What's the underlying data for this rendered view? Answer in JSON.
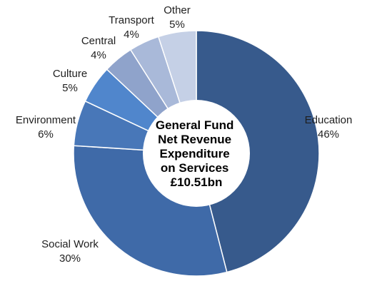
{
  "chart_data": {
    "type": "pie",
    "variant": "donut",
    "center_label": [
      "General Fund",
      "Net Revenue",
      "Expenditure",
      "on Services",
      "£10.51bn"
    ],
    "slices": [
      {
        "label": "Education",
        "value": 46,
        "value_text": "46%",
        "color": "#375a8c"
      },
      {
        "label": "Social Work",
        "value": 30,
        "value_text": "30%",
        "color": "#3f6aa8"
      },
      {
        "label": "Environment",
        "value": 6,
        "value_text": "6%",
        "color": "#4877b8"
      },
      {
        "label": "Culture",
        "value": 5,
        "value_text": "5%",
        "color": "#5086cc"
      },
      {
        "label": "Central",
        "value": 4,
        "value_text": "4%",
        "color": "#8fa3cb"
      },
      {
        "label": "Transport",
        "value": 4,
        "value_text": "4%",
        "color": "#a9b9d9"
      },
      {
        "label": "Other",
        "value": 5,
        "value_text": "5%",
        "color": "#c5d0e6"
      }
    ],
    "start_angle_deg": 0,
    "direction": "clockwise",
    "legend": "none"
  }
}
